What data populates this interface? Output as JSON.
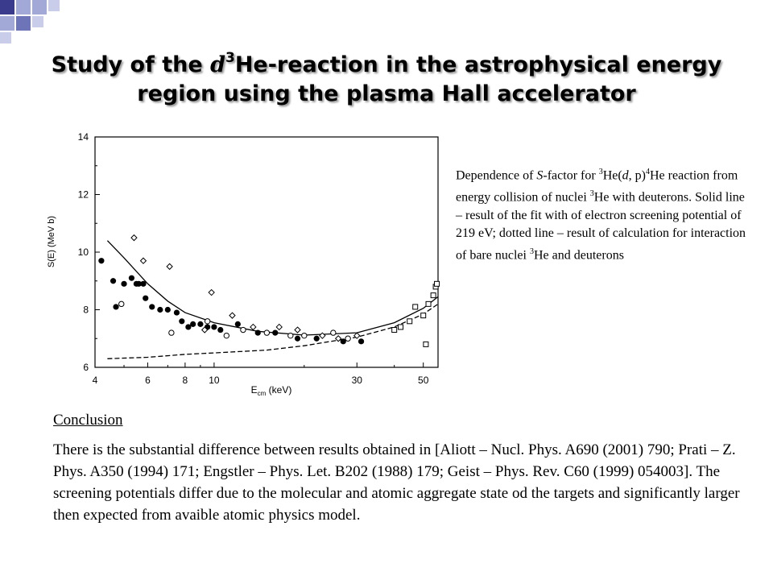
{
  "slide": {
    "title_part1": "Study of the ",
    "title_greek": "d",
    "title_sup": "3",
    "title_part2": "He-reaction in the astrophysical energy",
    "title_line2": "region using the plasma Hall accelerator",
    "caption": {
      "p1": "Dependence of ",
      "p2": "S",
      "p3": "-factor for ",
      "s1": "3",
      "p4": "He(",
      "p5": "d",
      "p6": ", p)",
      "s2": "4",
      "p7": "He reaction from energy collision of  nuclei ",
      "s3": "3",
      "p8": "He  with deuterons. Solid line – result of the fit with of electron screening potential of 219 eV; dotted line – result of calculation for interaction of bare nuclei ",
      "s4": "3",
      "p9": "He and deuterons"
    },
    "conclusion_title": "Conclusion",
    "conclusion_text": "There is the substantial difference between results obtained in [Aliott – Nucl. Phys. A690 (2001) 790; Prati – Z. Phys. A350 (1994) 171; Engstler – Phys. Let. B202 (1988) 179; Geist – Phys. Rev. C60 (1999) 054003]. The screening potentials differ due to the molecular and atomic aggregate state od the targets and significantly larger then expected from avaible atomic physics model.",
    "colors": {
      "deco_dark": "#3b3b8e",
      "deco_light": "#a3a9d6",
      "deco_mid": "#6e74b8"
    }
  },
  "chart_data": {
    "type": "scatter",
    "xscale": "log",
    "xlim": [
      4,
      56
    ],
    "ylim": [
      6,
      14
    ],
    "xticks": [
      "4",
      "6",
      "8",
      "10",
      "30",
      "50"
    ],
    "yticks": [
      "6",
      "8",
      "10",
      "12",
      "14"
    ],
    "ylabel": "S(E) (MeV b)",
    "xlabel_main": "E",
    "xlabel_sub": "cm",
    "xlabel_unit": " (keV)",
    "filled": [
      [
        4.2,
        9.7
      ],
      [
        4.6,
        9.0
      ],
      [
        4.7,
        8.1
      ],
      [
        5.0,
        8.9
      ],
      [
        5.3,
        9.1
      ],
      [
        5.5,
        8.9
      ],
      [
        5.6,
        8.9
      ],
      [
        5.8,
        8.9
      ],
      [
        5.9,
        8.4
      ],
      [
        6.2,
        8.1
      ],
      [
        6.6,
        8.0
      ],
      [
        7.0,
        8.0
      ],
      [
        7.5,
        7.9
      ],
      [
        7.8,
        7.6
      ],
      [
        8.2,
        7.4
      ],
      [
        8.5,
        7.5
      ],
      [
        9.0,
        7.5
      ],
      [
        9.5,
        7.4
      ],
      [
        10.0,
        7.4
      ],
      [
        10.5,
        7.3
      ],
      [
        12.0,
        7.5
      ],
      [
        14.0,
        7.2
      ],
      [
        16.0,
        7.2
      ],
      [
        19.0,
        7.0
      ],
      [
        22.0,
        7.0
      ],
      [
        27.0,
        6.9
      ],
      [
        31.0,
        6.9
      ]
    ],
    "open_circles": [
      [
        4.9,
        8.2
      ],
      [
        7.2,
        7.2
      ],
      [
        9.5,
        7.6
      ],
      [
        11.0,
        7.1
      ],
      [
        12.5,
        7.3
      ],
      [
        15.0,
        7.2
      ],
      [
        18.0,
        7.1
      ],
      [
        20.0,
        7.1
      ],
      [
        25.0,
        7.2
      ],
      [
        28.0,
        7.0
      ]
    ],
    "diamonds": [
      [
        5.4,
        10.5
      ],
      [
        5.8,
        9.7
      ],
      [
        7.1,
        9.5
      ],
      [
        9.3,
        7.3
      ],
      [
        9.8,
        8.6
      ],
      [
        11.5,
        7.8
      ],
      [
        13.5,
        7.4
      ],
      [
        16.5,
        7.4
      ],
      [
        19.0,
        7.3
      ],
      [
        23.0,
        7.1
      ],
      [
        26.0,
        7.0
      ],
      [
        30.0,
        7.1
      ]
    ],
    "squares": [
      [
        40.0,
        7.3
      ],
      [
        42.0,
        7.4
      ],
      [
        45.0,
        7.6
      ],
      [
        47.0,
        8.1
      ],
      [
        50.0,
        7.8
      ],
      [
        51.0,
        6.8
      ],
      [
        52.0,
        8.2
      ],
      [
        54.0,
        8.5
      ],
      [
        55.0,
        8.8
      ],
      [
        55.5,
        8.9
      ]
    ],
    "fit_line": [
      [
        4.4,
        10.4
      ],
      [
        5,
        9.8
      ],
      [
        6,
        8.9
      ],
      [
        7,
        8.3
      ],
      [
        8,
        7.9
      ],
      [
        10,
        7.55
      ],
      [
        14,
        7.25
      ],
      [
        20,
        7.12
      ],
      [
        30,
        7.2
      ],
      [
        40,
        7.55
      ],
      [
        50,
        8.05
      ],
      [
        56,
        8.45
      ]
    ],
    "bare_line": [
      [
        4.4,
        6.3
      ],
      [
        6,
        6.35
      ],
      [
        8,
        6.45
      ],
      [
        10,
        6.5
      ],
      [
        15,
        6.6
      ],
      [
        20,
        6.75
      ],
      [
        30,
        7.05
      ],
      [
        40,
        7.4
      ],
      [
        50,
        7.85
      ],
      [
        56,
        8.2
      ]
    ]
  }
}
